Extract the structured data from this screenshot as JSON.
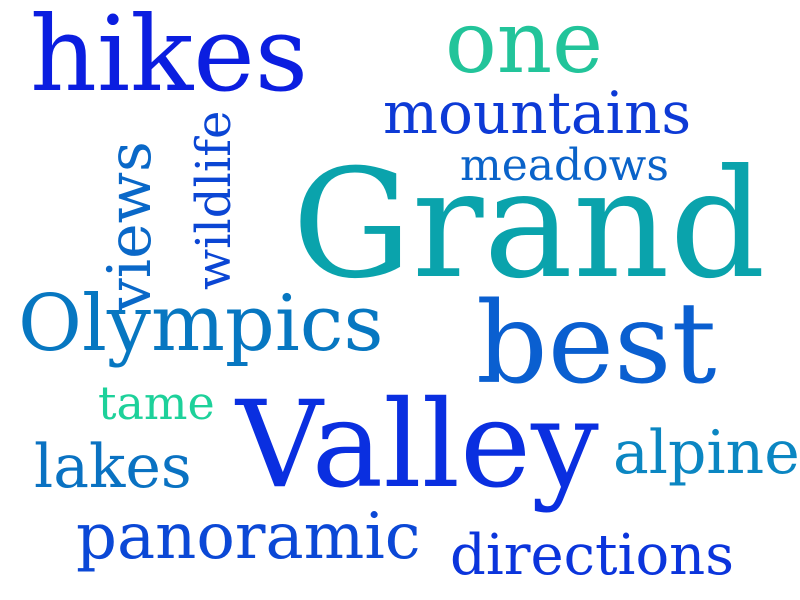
{
  "words": [
    {
      "text": "hikes",
      "color": "#0b1ee0"
    },
    {
      "text": "one",
      "color": "#22c49a"
    },
    {
      "text": "mountains",
      "color": "#0d3ad6"
    },
    {
      "text": "meadows",
      "color": "#0a63c9"
    },
    {
      "text": "views",
      "color": "#0a68c8"
    },
    {
      "text": "wildlife",
      "color": "#0b46d4"
    },
    {
      "text": "Grand",
      "color": "#0aa3ac"
    },
    {
      "text": "Olympics",
      "color": "#0777c1"
    },
    {
      "text": "best",
      "color": "#0a5fd0"
    },
    {
      "text": "tame",
      "color": "#1dd19a"
    },
    {
      "text": "Valley",
      "color": "#0a2fe0"
    },
    {
      "text": "lakes",
      "color": "#0a72c2"
    },
    {
      "text": "alpine",
      "color": "#0b86c2"
    },
    {
      "text": "panoramic",
      "color": "#0b48d6"
    },
    {
      "text": "directions",
      "color": "#0b35dc"
    }
  ]
}
